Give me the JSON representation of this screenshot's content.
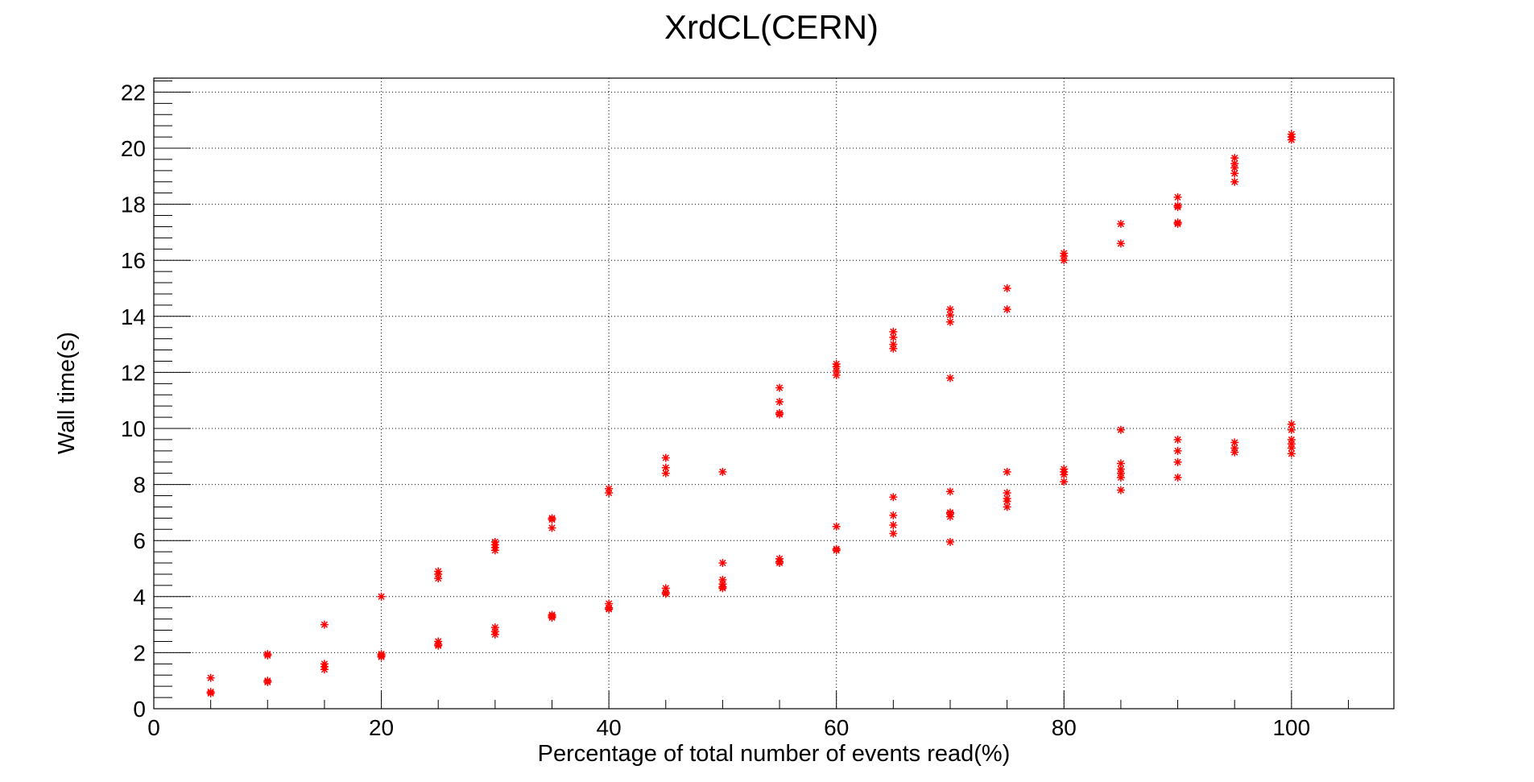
{
  "chart_data": {
    "type": "scatter",
    "title": "XrdCL(CERN)",
    "xlabel": "Percentage of total number of events read(%)",
    "ylabel": "Wall time(s)",
    "xlim": [
      0,
      109
    ],
    "ylim": [
      0,
      22.5
    ],
    "x_ticks": [
      0,
      20,
      40,
      60,
      80,
      100
    ],
    "y_ticks": [
      0,
      2,
      4,
      6,
      8,
      10,
      12,
      14,
      16,
      18,
      20,
      22
    ],
    "grid": true,
    "marker": "asterisk",
    "color": "#ff0000",
    "series": [
      {
        "points": [
          [
            5,
            1.1
          ],
          [
            5,
            0.6
          ],
          [
            5,
            0.55
          ],
          [
            10,
            1.95
          ],
          [
            10,
            1.9
          ],
          [
            10,
            1.0
          ],
          [
            10,
            0.95
          ],
          [
            15,
            3.0
          ],
          [
            15,
            1.6
          ],
          [
            15,
            1.5
          ],
          [
            15,
            1.4
          ],
          [
            20,
            4.0
          ],
          [
            20,
            1.95
          ],
          [
            20,
            1.9
          ],
          [
            20,
            1.85
          ],
          [
            25,
            4.9
          ],
          [
            25,
            4.8
          ],
          [
            25,
            4.65
          ],
          [
            25,
            2.4
          ],
          [
            25,
            2.3
          ],
          [
            25,
            2.25
          ],
          [
            30,
            5.95
          ],
          [
            30,
            5.85
          ],
          [
            30,
            5.75
          ],
          [
            30,
            5.65
          ],
          [
            30,
            2.9
          ],
          [
            30,
            2.75
          ],
          [
            30,
            2.65
          ],
          [
            35,
            6.8
          ],
          [
            35,
            6.75
          ],
          [
            35,
            6.45
          ],
          [
            35,
            3.35
          ],
          [
            35,
            3.3
          ],
          [
            35,
            3.25
          ],
          [
            40,
            7.85
          ],
          [
            40,
            7.7
          ],
          [
            40,
            3.75
          ],
          [
            40,
            3.6
          ],
          [
            40,
            3.55
          ],
          [
            45,
            8.95
          ],
          [
            45,
            8.6
          ],
          [
            45,
            8.4
          ],
          [
            45,
            4.3
          ],
          [
            45,
            4.15
          ],
          [
            45,
            4.1
          ],
          [
            50,
            8.45
          ],
          [
            50,
            5.2
          ],
          [
            50,
            4.6
          ],
          [
            50,
            4.45
          ],
          [
            50,
            4.35
          ],
          [
            50,
            4.3
          ],
          [
            55,
            11.45
          ],
          [
            55,
            10.95
          ],
          [
            55,
            10.55
          ],
          [
            55,
            10.5
          ],
          [
            55,
            5.35
          ],
          [
            55,
            5.25
          ],
          [
            55,
            5.2
          ],
          [
            60,
            12.3
          ],
          [
            60,
            12.2
          ],
          [
            60,
            12.05
          ],
          [
            60,
            11.9
          ],
          [
            60,
            6.5
          ],
          [
            60,
            5.7
          ],
          [
            60,
            5.65
          ],
          [
            65,
            13.45
          ],
          [
            65,
            13.25
          ],
          [
            65,
            13.0
          ],
          [
            65,
            12.85
          ],
          [
            65,
            7.55
          ],
          [
            65,
            6.9
          ],
          [
            65,
            6.55
          ],
          [
            65,
            6.25
          ],
          [
            70,
            14.25
          ],
          [
            70,
            14.05
          ],
          [
            70,
            13.8
          ],
          [
            70,
            11.8
          ],
          [
            70,
            7.75
          ],
          [
            70,
            7.0
          ],
          [
            70,
            6.95
          ],
          [
            70,
            6.85
          ],
          [
            70,
            5.95
          ],
          [
            75,
            15.0
          ],
          [
            75,
            14.25
          ],
          [
            75,
            8.45
          ],
          [
            75,
            7.7
          ],
          [
            75,
            7.5
          ],
          [
            75,
            7.4
          ],
          [
            75,
            7.2
          ],
          [
            80,
            16.25
          ],
          [
            80,
            16.15
          ],
          [
            80,
            16.0
          ],
          [
            80,
            8.55
          ],
          [
            80,
            8.45
          ],
          [
            80,
            8.35
          ],
          [
            80,
            8.1
          ],
          [
            85,
            17.3
          ],
          [
            85,
            16.6
          ],
          [
            85,
            9.95
          ],
          [
            85,
            8.75
          ],
          [
            85,
            8.55
          ],
          [
            85,
            8.4
          ],
          [
            85,
            8.25
          ],
          [
            85,
            7.8
          ],
          [
            90,
            18.25
          ],
          [
            90,
            17.95
          ],
          [
            90,
            17.9
          ],
          [
            90,
            17.35
          ],
          [
            90,
            17.3
          ],
          [
            90,
            9.6
          ],
          [
            90,
            9.2
          ],
          [
            90,
            8.8
          ],
          [
            90,
            8.25
          ],
          [
            95,
            19.65
          ],
          [
            95,
            19.45
          ],
          [
            95,
            19.3
          ],
          [
            95,
            19.1
          ],
          [
            95,
            18.8
          ],
          [
            95,
            9.5
          ],
          [
            95,
            9.3
          ],
          [
            95,
            9.15
          ],
          [
            100,
            20.5
          ],
          [
            100,
            20.4
          ],
          [
            100,
            20.3
          ],
          [
            100,
            10.15
          ],
          [
            100,
            9.95
          ],
          [
            100,
            9.6
          ],
          [
            100,
            9.45
          ],
          [
            100,
            9.3
          ],
          [
            100,
            9.1
          ]
        ]
      }
    ]
  }
}
